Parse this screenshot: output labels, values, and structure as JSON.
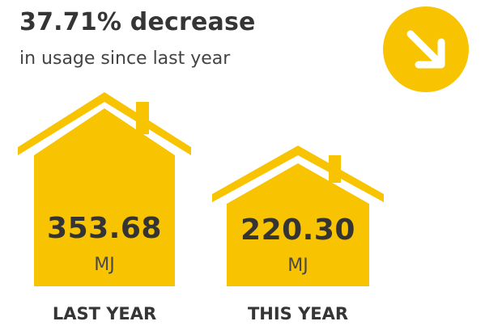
{
  "summary": {
    "headline": "37.71% decrease",
    "subline": "in usage since last year",
    "trend_icon": "arrow-down-right-icon"
  },
  "comparison": [
    {
      "caption": "LAST YEAR",
      "value": "353.68",
      "unit": "MJ"
    },
    {
      "caption": "THIS YEAR",
      "value": "220.30",
      "unit": "MJ"
    }
  ],
  "colors": {
    "accent": "#f8c300",
    "text": "#353535"
  }
}
